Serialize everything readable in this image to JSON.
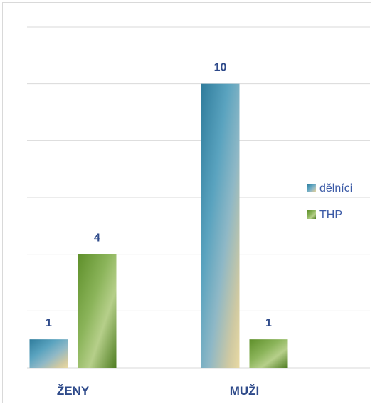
{
  "chart_data": {
    "type": "bar",
    "categories": [
      "ŽENY",
      "MUŽI"
    ],
    "series": [
      {
        "name": "dělníci",
        "values": [
          1,
          10
        ],
        "color": "#3f86a8"
      },
      {
        "name": "THP",
        "values": [
          4,
          1
        ],
        "color": "#6fa23a"
      }
    ],
    "ylim": [
      0,
      12
    ],
    "gridlines": true,
    "y_axis_labels_shown": false,
    "legend_position": "right"
  }
}
